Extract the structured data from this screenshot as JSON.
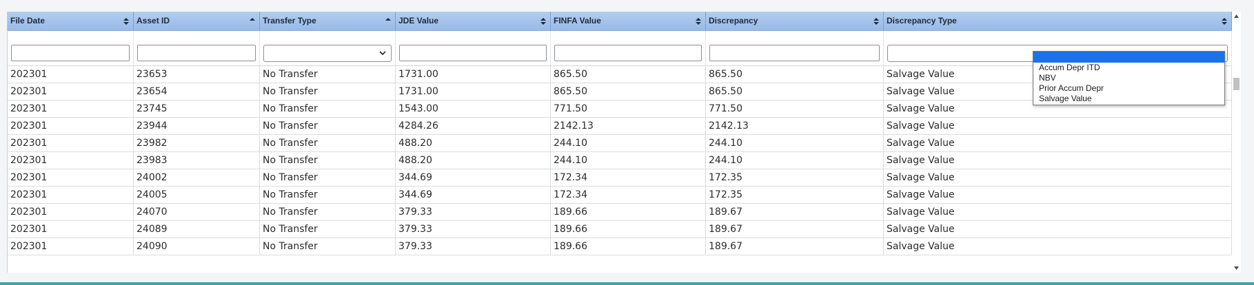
{
  "columns": [
    {
      "label": "File Date",
      "sort": "both"
    },
    {
      "label": "Asset ID",
      "sort": "asc"
    },
    {
      "label": "Transfer Type",
      "sort": "asc"
    },
    {
      "label": "JDE Value",
      "sort": "both"
    },
    {
      "label": "FINFA Value",
      "sort": "both"
    },
    {
      "label": "Discrepancy",
      "sort": "both"
    },
    {
      "label": "Discrepancy Type",
      "sort": "both"
    }
  ],
  "filters": {
    "file_date": "",
    "asset_id": "",
    "transfer_type": "",
    "jde_value": "",
    "finfa_value": "",
    "discrepancy": "",
    "discrepancy_type": ""
  },
  "discrepancy_type_options": [
    "",
    "Accum Depr ITD",
    "NBV",
    "Prior Accum Depr",
    "Salvage Value"
  ],
  "rows": [
    [
      "202301",
      "23653",
      "No Transfer",
      "1731.00",
      "865.50",
      "865.50",
      "Salvage Value"
    ],
    [
      "202301",
      "23654",
      "No Transfer",
      "1731.00",
      "865.50",
      "865.50",
      "Salvage Value"
    ],
    [
      "202301",
      "23745",
      "No Transfer",
      "1543.00",
      "771.50",
      "771.50",
      "Salvage Value"
    ],
    [
      "202301",
      "23944",
      "No Transfer",
      "4284.26",
      "2142.13",
      "2142.13",
      "Salvage Value"
    ],
    [
      "202301",
      "23982",
      "No Transfer",
      "488.20",
      "244.10",
      "244.10",
      "Salvage Value"
    ],
    [
      "202301",
      "23983",
      "No Transfer",
      "488.20",
      "244.10",
      "244.10",
      "Salvage Value"
    ],
    [
      "202301",
      "24002",
      "No Transfer",
      "344.69",
      "172.34",
      "172.35",
      "Salvage Value"
    ],
    [
      "202301",
      "24005",
      "No Transfer",
      "344.69",
      "172.34",
      "172.35",
      "Salvage Value"
    ],
    [
      "202301",
      "24070",
      "No Transfer",
      "379.33",
      "189.66",
      "189.67",
      "Salvage Value"
    ],
    [
      "202301",
      "24089",
      "No Transfer",
      "379.33",
      "189.66",
      "189.67",
      "Salvage Value"
    ],
    [
      "202301",
      "24090",
      "No Transfer",
      "379.33",
      "189.66",
      "189.67",
      "Salvage Value"
    ]
  ],
  "colors": {
    "header_bg": "#a7c6ec",
    "selected_option": "#1a73e8",
    "bottom_bar": "#3aa3b0"
  },
  "icons": {
    "sort_both": "sort-both-icon",
    "sort_asc": "sort-asc-icon",
    "select_chevron": "chevron-down-icon"
  }
}
